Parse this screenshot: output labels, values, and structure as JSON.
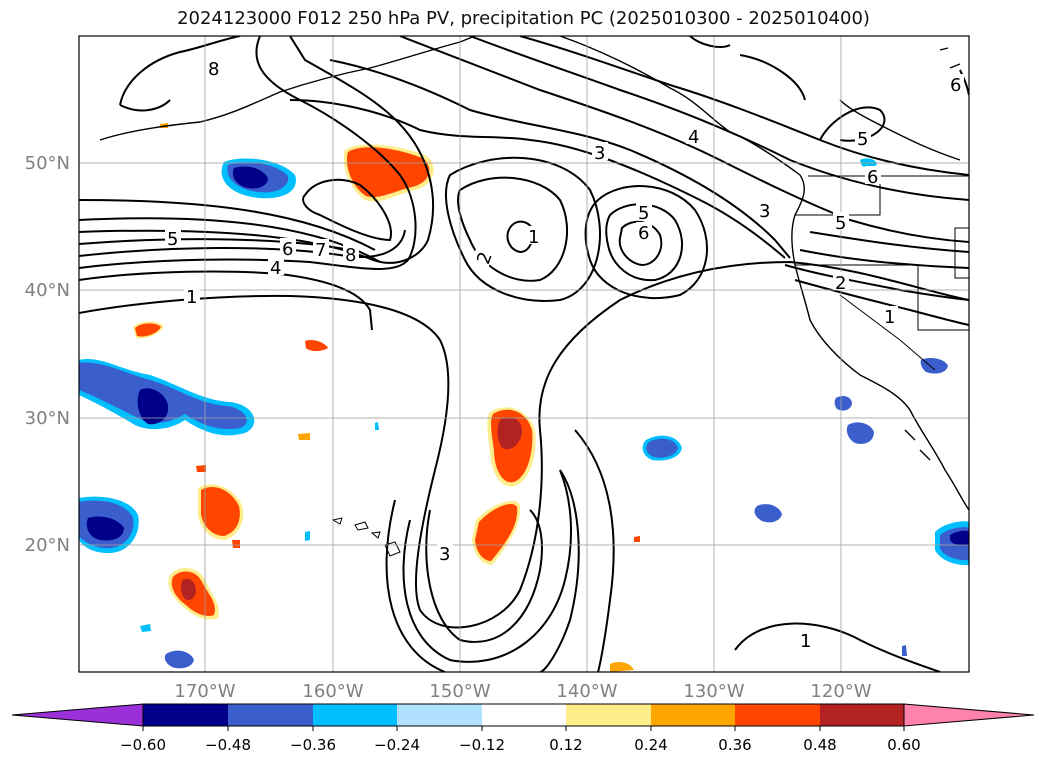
{
  "title": "2024123000 F012 250 hPa PV, precipitation PC (2025010300 - 2025010400)",
  "map": {
    "lon_range": [
      -180,
      -110
    ],
    "lat_range": [
      10,
      60
    ],
    "lat_labels": [
      {
        "value": 50,
        "label": "50°N"
      },
      {
        "value": 40,
        "label": "40°N"
      },
      {
        "value": 30,
        "label": "30°N"
      },
      {
        "value": 20,
        "label": "20°N"
      }
    ],
    "lon_labels": [
      {
        "value": -170,
        "label": "170°W"
      },
      {
        "value": -160,
        "label": "160°W"
      },
      {
        "value": -150,
        "label": "150°W"
      },
      {
        "value": -140,
        "label": "140°W"
      },
      {
        "value": -130,
        "label": "130°W"
      },
      {
        "value": -120,
        "label": "120°W"
      }
    ],
    "grid": true,
    "contour_labels": [
      "1",
      "2",
      "3",
      "4",
      "5",
      "6",
      "7",
      "8"
    ]
  },
  "colorbar": {
    "ticks": [
      "−0.60",
      "−0.48",
      "−0.36",
      "−0.24",
      "−0.12",
      "0.12",
      "0.24",
      "0.36",
      "0.48",
      "0.60"
    ],
    "colors": [
      "#9b30d9",
      "#00008b",
      "#3a5fcd",
      "#00bfff",
      "#b0e2ff",
      "#ffffff",
      "#ffec8b",
      "#ffa500",
      "#ff4500",
      "#b22222",
      "#ff82ab"
    ],
    "extend": "both"
  }
}
